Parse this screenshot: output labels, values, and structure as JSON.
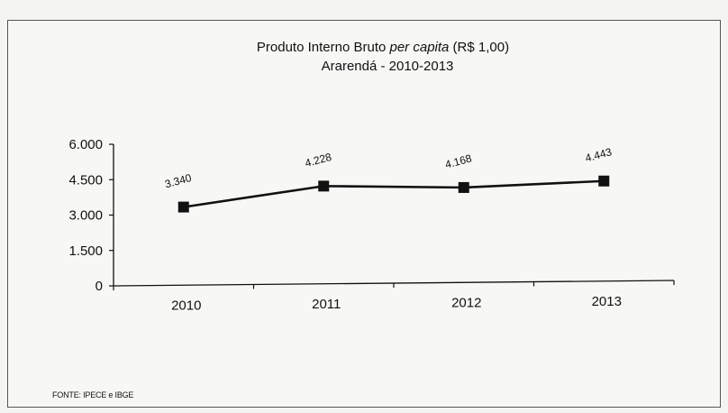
{
  "chart_data": {
    "type": "line",
    "title_prefix": "Produto Interno Bruto ",
    "title_italic": "per capita",
    "title_suffix": " (R$ 1,00)",
    "subtitle": "Ararendá - 2010-2013",
    "categories": [
      "2010",
      "2011",
      "2012",
      "2013"
    ],
    "series": [
      {
        "values": [
          3340,
          4228,
          4168,
          4443
        ],
        "labels": [
          "3.340",
          "4.228",
          "4.168",
          "4.443"
        ],
        "marker": "square",
        "color": "#111111"
      }
    ],
    "ylim": [
      0,
      6000
    ],
    "yticks": [
      0,
      1500,
      3000,
      4500,
      6000
    ],
    "ytick_labels": [
      "0",
      "1.500",
      "3.000",
      "4.500",
      "6.000"
    ],
    "grid": false,
    "legend": "none"
  },
  "source": "FONTE: IPECE e IBGE"
}
